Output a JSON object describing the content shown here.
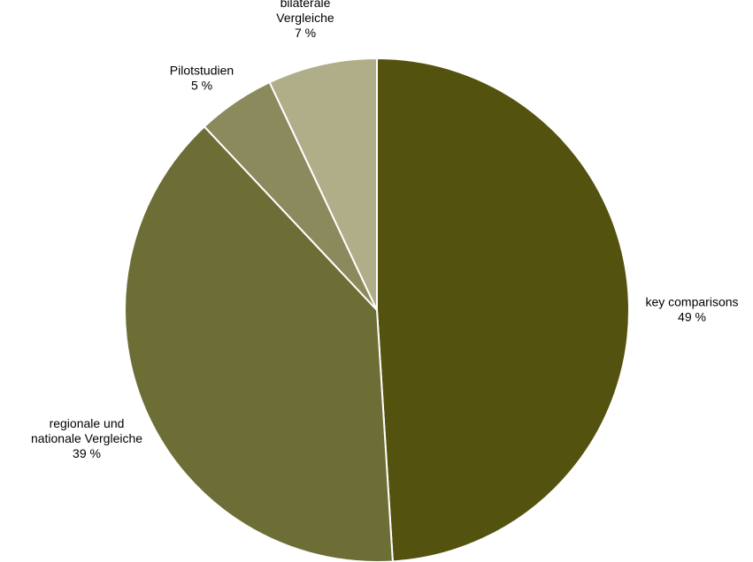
{
  "chart_data": {
    "type": "pie",
    "start_angle_deg": 0,
    "direction": "clockwise",
    "slice_border": "#ffffff",
    "slices": [
      {
        "label_lines": [
          "key comparisons",
          "49 %"
        ],
        "value": 49,
        "color": "#54520f"
      },
      {
        "label_lines": [
          "regionale und",
          "nationale Vergleiche",
          "39 %"
        ],
        "value": 39,
        "color": "#6d6e35"
      },
      {
        "label_lines": [
          "Pilotstudien",
          "5 %"
        ],
        "value": 5,
        "color": "#8b8a5c"
      },
      {
        "label_lines": [
          "bilaterale",
          "Vergleiche",
          "7 %"
        ],
        "value": 7,
        "color": "#b0ad89"
      }
    ]
  }
}
